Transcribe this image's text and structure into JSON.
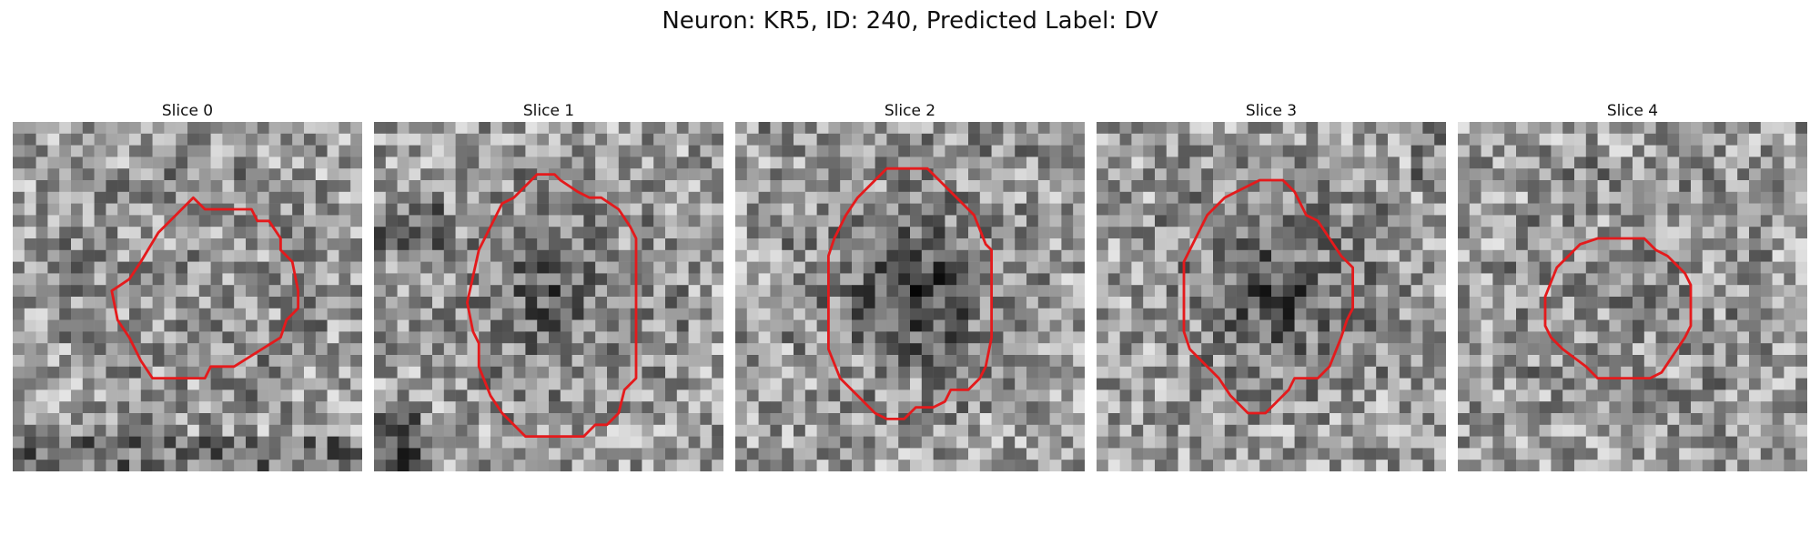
{
  "figure": {
    "title": "Neuron: KR5, ID: 240, Predicted Label: DV",
    "contour_color": "#e41a1c",
    "colormap": "gray",
    "panels": [
      {
        "title": "Slice 0",
        "seed": 11,
        "darkness": 0.05,
        "dark_corner": "bottom"
      },
      {
        "title": "Slice 1",
        "seed": 23,
        "darkness": 0.28,
        "dark_corner": "left"
      },
      {
        "title": "Slice 2",
        "seed": 37,
        "darkness": 0.42,
        "dark_corner": "top"
      },
      {
        "title": "Slice 3",
        "seed": 51,
        "darkness": 0.35,
        "dark_corner": "right"
      },
      {
        "title": "Slice 4",
        "seed": 67,
        "darkness": 0.08,
        "dark_corner": "none"
      }
    ]
  }
}
